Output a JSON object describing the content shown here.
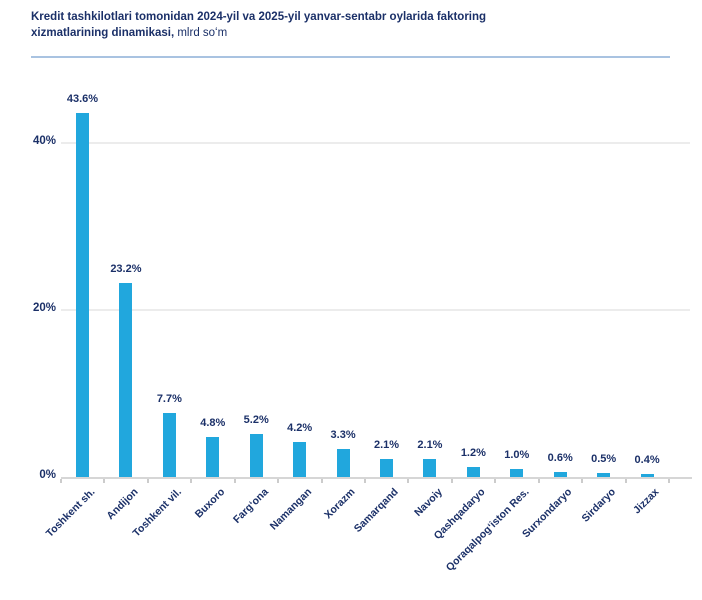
{
  "header": {
    "title_line1": "Kredit tashkilotlari tomonidan 2024-yil va 2025-yil yanvar-sentabr oylarida faktoring",
    "title_line2_bold": "xizmatlarining dinamikasi,",
    "title_line2_regular": " mlrd soʻm"
  },
  "chart_data": {
    "type": "bar",
    "title": "Kredit tashkilotlari tomonidan 2024-yil va 2025-yil yanvar-sentabr oylarida faktoring xizmatlarining dinamikasi, mlrd soʻm",
    "categories": [
      "Toshkent sh.",
      "Andijon",
      "Toshkent vil.",
      "Buxoro",
      "Fargʻona",
      "Namangan",
      "Xorazm",
      "Samarqand",
      "Navoiy",
      "Qashqadaryo",
      "Qoraqalpogʻiston Res.",
      "Surxondaryo",
      "Sirdaryo",
      "Jizzax"
    ],
    "values": [
      43.6,
      23.2,
      7.7,
      4.8,
      5.2,
      4.2,
      3.3,
      2.1,
      2.1,
      1.2,
      1.0,
      0.6,
      0.5,
      0.4
    ],
    "value_labels": [
      "43.6%",
      "23.2%",
      "7.7%",
      "4.8%",
      "5.2%",
      "4.2%",
      "3.3%",
      "2.1%",
      "2.1%",
      "1.2%",
      "1.0%",
      "0.6%",
      "0.5%",
      "0.4%"
    ],
    "y_ticks": [
      {
        "value": 0,
        "label": "0%"
      },
      {
        "value": 20,
        "label": "20%"
      },
      {
        "value": 40,
        "label": "40%"
      }
    ],
    "ylim": [
      0,
      44
    ],
    "xlabel": "",
    "ylabel": "",
    "grid": true,
    "legend": "none",
    "colors": {
      "bar": "#21a7dd",
      "text": "#1b3068",
      "gridline": "#ececec",
      "axis": "#d6d6d6",
      "tick": "#cccccc",
      "divider": "#a9c3e1"
    }
  }
}
